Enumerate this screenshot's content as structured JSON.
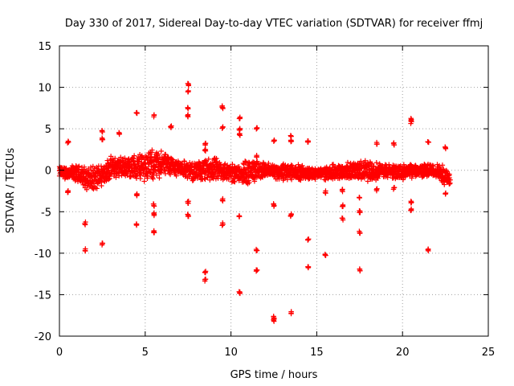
{
  "chart_data": {
    "type": "scatter",
    "title": "Day 330 of 2017, Sidereal Day-to-day VTEC variation (SDTVAR) for receiver ffmj",
    "xlabel": "GPS time / hours",
    "ylabel": "SDTVAR / TECUs",
    "xlim": [
      0,
      25
    ],
    "ylim": [
      -20,
      15
    ],
    "xticks": [
      0,
      5,
      10,
      15,
      20,
      25
    ],
    "yticks": [
      15,
      10,
      5,
      0,
      -5,
      -10,
      -15,
      -20
    ],
    "grid": true,
    "marker": "plus",
    "color": "#ff0000",
    "main_band": [
      {
        "x": 0.0,
        "center": -0.2,
        "spread": 0.8
      },
      {
        "x": 1.0,
        "center": -0.5,
        "spread": 1.2
      },
      {
        "x": 2.0,
        "center": -1.2,
        "spread": 1.8
      },
      {
        "x": 3.0,
        "center": 0.3,
        "spread": 1.5
      },
      {
        "x": 4.0,
        "center": 0.4,
        "spread": 1.4
      },
      {
        "x": 5.0,
        "center": 0.5,
        "spread": 2.2
      },
      {
        "x": 6.0,
        "center": 0.8,
        "spread": 1.8
      },
      {
        "x": 7.0,
        "center": 0.3,
        "spread": 1.0
      },
      {
        "x": 8.0,
        "center": -0.2,
        "spread": 1.4
      },
      {
        "x": 9.0,
        "center": 0.1,
        "spread": 1.6
      },
      {
        "x": 10.0,
        "center": -0.3,
        "spread": 1.2
      },
      {
        "x": 11.0,
        "center": -0.2,
        "spread": 1.8
      },
      {
        "x": 12.0,
        "center": 0.0,
        "spread": 1.0
      },
      {
        "x": 13.0,
        "center": -0.2,
        "spread": 1.2
      },
      {
        "x": 14.0,
        "center": -0.3,
        "spread": 1.0
      },
      {
        "x": 15.0,
        "center": -0.4,
        "spread": 0.8
      },
      {
        "x": 16.0,
        "center": -0.2,
        "spread": 1.0
      },
      {
        "x": 17.0,
        "center": -0.1,
        "spread": 1.2
      },
      {
        "x": 18.0,
        "center": 0.0,
        "spread": 1.4
      },
      {
        "x": 19.0,
        "center": -0.1,
        "spread": 1.0
      },
      {
        "x": 20.0,
        "center": -0.2,
        "spread": 1.0
      },
      {
        "x": 21.0,
        "center": 0.0,
        "spread": 0.9
      },
      {
        "x": 22.0,
        "center": -0.1,
        "spread": 1.0
      },
      {
        "x": 22.8,
        "center": -1.0,
        "spread": 1.5
      }
    ],
    "outliers": [
      {
        "x": 0.5,
        "y": 3.4
      },
      {
        "x": 0.5,
        "y": -2.6
      },
      {
        "x": 1.5,
        "y": -6.4
      },
      {
        "x": 1.5,
        "y": -9.6
      },
      {
        "x": 2.5,
        "y": 4.7
      },
      {
        "x": 2.5,
        "y": 3.8
      },
      {
        "x": 2.5,
        "y": -8.9
      },
      {
        "x": 3.5,
        "y": 4.5
      },
      {
        "x": 4.5,
        "y": 7.0
      },
      {
        "x": 4.5,
        "y": -6.5
      },
      {
        "x": 4.5,
        "y": -3.0
      },
      {
        "x": 5.5,
        "y": 6.6
      },
      {
        "x": 5.5,
        "y": -5.3
      },
      {
        "x": 5.5,
        "y": -7.4
      },
      {
        "x": 5.5,
        "y": -4.2
      },
      {
        "x": 6.5,
        "y": 5.3
      },
      {
        "x": 7.5,
        "y": 10.3
      },
      {
        "x": 7.5,
        "y": 9.5
      },
      {
        "x": 7.5,
        "y": 7.5
      },
      {
        "x": 7.5,
        "y": 6.6
      },
      {
        "x": 7.5,
        "y": -3.9
      },
      {
        "x": 7.5,
        "y": -5.4
      },
      {
        "x": 8.5,
        "y": 3.2
      },
      {
        "x": 8.5,
        "y": 2.4
      },
      {
        "x": 8.5,
        "y": -12.3
      },
      {
        "x": 8.5,
        "y": -13.2
      },
      {
        "x": 9.5,
        "y": 7.6
      },
      {
        "x": 9.5,
        "y": 5.2
      },
      {
        "x": 9.5,
        "y": -3.6
      },
      {
        "x": 9.5,
        "y": -6.5
      },
      {
        "x": 10.5,
        "y": 6.3
      },
      {
        "x": 10.5,
        "y": 5.0
      },
      {
        "x": 10.5,
        "y": 4.3
      },
      {
        "x": 10.5,
        "y": -5.5
      },
      {
        "x": 10.5,
        "y": -14.8
      },
      {
        "x": 11.5,
        "y": 5.1
      },
      {
        "x": 11.5,
        "y": 1.7
      },
      {
        "x": 11.5,
        "y": -9.6
      },
      {
        "x": 11.5,
        "y": -12.0
      },
      {
        "x": 12.5,
        "y": 3.6
      },
      {
        "x": 12.5,
        "y": -4.2
      },
      {
        "x": 12.5,
        "y": -17.7
      },
      {
        "x": 12.5,
        "y": -18.1
      },
      {
        "x": 13.5,
        "y": 4.2
      },
      {
        "x": 13.5,
        "y": 3.6
      },
      {
        "x": 13.5,
        "y": -5.4
      },
      {
        "x": 13.5,
        "y": -17.2
      },
      {
        "x": 14.5,
        "y": 3.4
      },
      {
        "x": 14.5,
        "y": -8.4
      },
      {
        "x": 14.5,
        "y": -11.6
      },
      {
        "x": 15.5,
        "y": -2.6
      },
      {
        "x": 15.5,
        "y": -10.3
      },
      {
        "x": 16.5,
        "y": -2.4
      },
      {
        "x": 16.5,
        "y": -4.3
      },
      {
        "x": 16.5,
        "y": -5.9
      },
      {
        "x": 17.5,
        "y": -3.3
      },
      {
        "x": 17.5,
        "y": -5.0
      },
      {
        "x": 17.5,
        "y": -7.5
      },
      {
        "x": 17.5,
        "y": -12.0
      },
      {
        "x": 18.5,
        "y": 3.2
      },
      {
        "x": 18.5,
        "y": -2.3
      },
      {
        "x": 19.5,
        "y": 3.2
      },
      {
        "x": 19.5,
        "y": -2.2
      },
      {
        "x": 20.5,
        "y": 6.1
      },
      {
        "x": 20.5,
        "y": 5.8
      },
      {
        "x": 20.5,
        "y": -3.8
      },
      {
        "x": 20.5,
        "y": -4.8
      },
      {
        "x": 21.5,
        "y": 3.4
      },
      {
        "x": 21.5,
        "y": -9.6
      },
      {
        "x": 22.5,
        "y": 2.7
      },
      {
        "x": 22.5,
        "y": -2.8
      }
    ]
  }
}
